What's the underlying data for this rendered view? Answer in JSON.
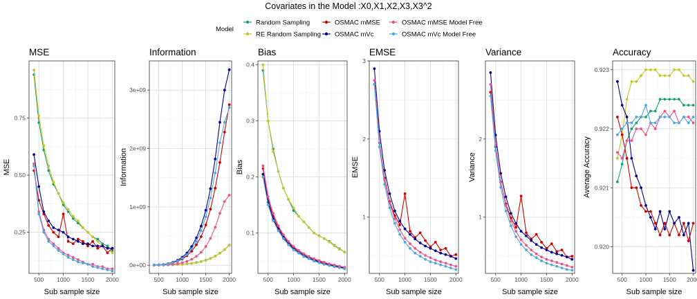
{
  "title": "Covariates in the Model :X0,X1,X2,X3,X3^2",
  "legend": {
    "title": "Model",
    "entries": [
      {
        "name": "Random Sampling",
        "color": "#1b9e77"
      },
      {
        "name": "RE Random Sampling",
        "color": "#c6c62a"
      },
      {
        "name": "OSMAC mMSE",
        "color": "#cc0000"
      },
      {
        "name": "OSMAC mVc",
        "color": "#00008b"
      },
      {
        "name": "OSMAC mMSE Model Free",
        "color": "#e7548a"
      },
      {
        "name": "OSMAC mVc Model Free",
        "color": "#4fa6dc"
      }
    ]
  },
  "chart_data": [
    {
      "type": "line",
      "title": "MSE",
      "xlabel": "Sub sample size",
      "ylabel": "MSE",
      "x": [
        400,
        500,
        600,
        700,
        800,
        900,
        1000,
        1100,
        1200,
        1300,
        1400,
        1500,
        1600,
        1700,
        1800,
        1900,
        2000
      ],
      "xlim": [
        300,
        2050
      ],
      "ylim": [
        0.07,
        1.0
      ],
      "xticks": [
        500,
        1000,
        1500,
        2000
      ],
      "yticks": [
        0.25,
        0.5,
        0.75
      ],
      "ytick_labels": [
        "0.25",
        "0.50",
        "0.75"
      ],
      "series": [
        {
          "name": "Random Sampling",
          "values": [
            0.94,
            0.73,
            0.61,
            0.52,
            0.46,
            0.42,
            0.37,
            0.34,
            0.31,
            0.29,
            0.27,
            0.25,
            0.23,
            0.22,
            0.2,
            0.19,
            0.17
          ]
        },
        {
          "name": "RE Random Sampling",
          "values": [
            0.96,
            0.76,
            0.63,
            0.54,
            0.47,
            0.42,
            0.38,
            0.35,
            0.32,
            0.3,
            0.27,
            0.25,
            0.23,
            0.21,
            0.19,
            0.18,
            0.16
          ]
        },
        {
          "name": "OSMAC mMSE",
          "values": [
            0.52,
            0.39,
            0.33,
            0.28,
            0.25,
            0.23,
            0.33,
            0.21,
            0.2,
            0.22,
            0.21,
            0.19,
            0.21,
            0.18,
            0.19,
            0.16,
            0.18
          ]
        },
        {
          "name": "OSMAC mVc",
          "values": [
            0.59,
            0.45,
            0.34,
            0.3,
            0.27,
            0.26,
            0.25,
            0.23,
            0.22,
            0.21,
            0.2,
            0.2,
            0.19,
            0.19,
            0.19,
            0.18,
            0.18
          ]
        },
        {
          "name": "OSMAC mMSE Model Free",
          "values": [
            0.55,
            0.34,
            0.26,
            0.22,
            0.2,
            0.18,
            0.16,
            0.15,
            0.14,
            0.13,
            0.12,
            0.11,
            0.11,
            0.1,
            0.1,
            0.09,
            0.09
          ]
        },
        {
          "name": "OSMAC mVc Model Free",
          "values": [
            0.54,
            0.33,
            0.25,
            0.21,
            0.19,
            0.17,
            0.155,
            0.14,
            0.13,
            0.12,
            0.115,
            0.11,
            0.1,
            0.095,
            0.09,
            0.085,
            0.08
          ]
        }
      ]
    },
    {
      "type": "line",
      "title": "Information",
      "xlabel": "Sub sample size",
      "ylabel": "Information",
      "x": [
        400,
        500,
        600,
        700,
        800,
        900,
        1000,
        1100,
        1200,
        1300,
        1400,
        1500,
        1600,
        1700,
        1800,
        1900,
        2000
      ],
      "xlim": [
        300,
        2050
      ],
      "ylim": [
        -140000000.0,
        3500000000.0
      ],
      "xticks": [
        500,
        1000,
        1500,
        2000
      ],
      "yticks": [
        0,
        1000000000,
        2000000000,
        3000000000
      ],
      "ytick_labels": [
        "0e+00",
        "1e+09",
        "2e+09",
        "3e+09"
      ],
      "series": [
        {
          "name": "Random Sampling",
          "values": [
            1500000.0,
            2200000.0,
            3500000.0,
            5500000.0,
            8000000.0,
            12000000.0,
            17000000.0,
            24000000.0,
            33000000.0,
            46000000.0,
            63000000.0,
            86000000.0,
            116000000.0,
            156000000.0,
            206000000.0,
            268000000.0,
            345000000.0
          ]
        },
        {
          "name": "RE Random Sampling",
          "values": [
            1100000.0,
            1600000.0,
            2600000.0,
            4200000.0,
            6500000.0,
            10000000.0,
            15000000.0,
            22000000.0,
            31000000.0,
            44000000.0,
            61000000.0,
            84000000.0,
            114000000.0,
            154000000.0,
            204000000.0,
            266000000.0,
            340000000.0
          ]
        },
        {
          "name": "OSMAC mMSE",
          "values": [
            2000000.0,
            5000000.0,
            11000000.0,
            22000000.0,
            40000000.0,
            67000000.0,
            106000000.0,
            162000000.0,
            240000000.0,
            350000000.0,
            490000000.0,
            690000000.0,
            960000000.0,
            1320000000.0,
            1760000000.0,
            2280000000.0,
            2750000000.0
          ]
        },
        {
          "name": "OSMAC mVc",
          "values": [
            2000000.0,
            6000000.0,
            13000000.0,
            27000000.0,
            50000000.0,
            85000000.0,
            138000000.0,
            210000000.0,
            320000000.0,
            470000000.0,
            670000000.0,
            940000000.0,
            1310000000.0,
            1820000000.0,
            2450000000.0,
            3000000000.0,
            3350000000.0
          ]
        },
        {
          "name": "OSMAC mMSE Model Free",
          "values": [
            1000000.0,
            2500000.0,
            5000000.0,
            9000000.0,
            16000000.0,
            27000000.0,
            44000000.0,
            68000000.0,
            102000000.0,
            152000000.0,
            222000000.0,
            320000000.0,
            460000000.0,
            650000000.0,
            890000000.0,
            1090000000.0,
            1200000000.0
          ]
        },
        {
          "name": "OSMAC mVc Model Free",
          "values": [
            2000000.0,
            5000000.0,
            11000000.0,
            23000000.0,
            43000000.0,
            73000000.0,
            118000000.0,
            183000000.0,
            280000000.0,
            410000000.0,
            590000000.0,
            830000000.0,
            1150000000.0,
            1580000000.0,
            2100000000.0,
            2450000000.0,
            2700000000.0
          ]
        }
      ]
    },
    {
      "type": "line",
      "title": "Bias",
      "xlabel": "Sub sample size",
      "ylabel": "Bias",
      "x": [
        400,
        500,
        600,
        700,
        800,
        900,
        1000,
        1100,
        1200,
        1300,
        1400,
        1500,
        1600,
        1700,
        1800,
        1900,
        2000
      ],
      "xlim": [
        300,
        2050
      ],
      "ylim": [
        0.028,
        0.407
      ],
      "xticks": [
        500,
        1000,
        1500,
        2000
      ],
      "yticks": [
        0.1,
        0.2,
        0.3,
        0.4
      ],
      "ytick_labels": [
        "0.1",
        "0.2",
        "0.3",
        "0.4"
      ],
      "series": [
        {
          "name": "Random Sampling",
          "values": [
            0.39,
            0.3,
            0.25,
            0.21,
            0.18,
            0.16,
            0.14,
            0.13,
            0.12,
            0.11,
            0.1,
            0.095,
            0.09,
            0.085,
            0.078,
            0.072,
            0.066
          ]
        },
        {
          "name": "RE Random Sampling",
          "values": [
            0.4,
            0.3,
            0.245,
            0.21,
            0.18,
            0.16,
            0.145,
            0.13,
            0.12,
            0.11,
            0.1,
            0.095,
            0.09,
            0.084,
            0.077,
            0.071,
            0.066
          ]
        },
        {
          "name": "OSMAC mMSE",
          "values": [
            0.215,
            0.16,
            0.13,
            0.11,
            0.095,
            0.083,
            0.074,
            0.068,
            0.062,
            0.057,
            0.053,
            0.05,
            0.047,
            0.044,
            0.042,
            0.04,
            0.038
          ]
        },
        {
          "name": "OSMAC mVc",
          "values": [
            0.205,
            0.155,
            0.125,
            0.107,
            0.092,
            0.081,
            0.072,
            0.066,
            0.06,
            0.055,
            0.052,
            0.048,
            0.045,
            0.043,
            0.041,
            0.039,
            0.037
          ]
        },
        {
          "name": "OSMAC mMSE Model Free",
          "values": [
            0.22,
            0.165,
            0.135,
            0.113,
            0.097,
            0.085,
            0.076,
            0.069,
            0.063,
            0.058,
            0.054,
            0.051,
            0.048,
            0.045,
            0.043,
            0.041,
            0.039
          ]
        },
        {
          "name": "OSMAC mVc Model Free",
          "values": [
            0.2,
            0.15,
            0.122,
            0.104,
            0.09,
            0.079,
            0.07,
            0.064,
            0.058,
            0.054,
            0.05,
            0.047,
            0.044,
            0.042,
            0.04,
            0.038,
            0.036
          ]
        }
      ]
    },
    {
      "type": "line",
      "title": "EMSE",
      "xlabel": "Sub sample size",
      "ylabel": "EMSE",
      "x": [
        400,
        500,
        600,
        700,
        800,
        900,
        1000,
        1100,
        1200,
        1300,
        1400,
        1500,
        1600,
        1700,
        1800,
        1900,
        2000
      ],
      "xlim": [
        300,
        2050
      ],
      "ylim": [
        0.28,
        3.0
      ],
      "xticks": [
        500,
        1000,
        1500,
        2000
      ],
      "yticks": [
        1,
        2,
        3
      ],
      "ytick_labels": [
        "1",
        "2",
        "3"
      ],
      "series": [
        {
          "name": "OSMAC mMSE",
          "values": [
            2.7,
            1.95,
            1.5,
            1.2,
            1.02,
            0.9,
            1.3,
            0.82,
            0.74,
            0.8,
            0.7,
            0.62,
            0.68,
            0.58,
            0.6,
            0.5,
            0.52
          ]
        },
        {
          "name": "OSMAC mVc",
          "values": [
            2.9,
            2.1,
            1.6,
            1.3,
            1.08,
            0.95,
            0.85,
            0.78,
            0.72,
            0.67,
            0.63,
            0.6,
            0.57,
            0.54,
            0.52,
            0.5,
            0.47
          ]
        },
        {
          "name": "OSMAC mMSE Model Free",
          "values": [
            2.75,
            1.95,
            1.48,
            1.18,
            0.98,
            0.84,
            0.73,
            0.66,
            0.6,
            0.55,
            0.51,
            0.48,
            0.45,
            0.43,
            0.41,
            0.39,
            0.37
          ]
        },
        {
          "name": "OSMAC mVc Model Free",
          "values": [
            2.7,
            1.9,
            1.42,
            1.12,
            0.92,
            0.78,
            0.68,
            0.6,
            0.54,
            0.5,
            0.46,
            0.43,
            0.41,
            0.39,
            0.37,
            0.35,
            0.33
          ]
        }
      ]
    },
    {
      "type": "line",
      "title": "Variance",
      "xlabel": "Sub sample size",
      "ylabel": "Variance",
      "x": [
        400,
        500,
        600,
        700,
        800,
        900,
        1000,
        1100,
        1200,
        1300,
        1400,
        1500,
        1600,
        1700,
        1800,
        1900,
        2000
      ],
      "xlim": [
        300,
        2050
      ],
      "ylim": [
        0.28,
        3.0
      ],
      "xticks": [
        500,
        1000,
        1500,
        2000
      ],
      "yticks": [
        1,
        2
      ],
      "ytick_labels": [
        "1",
        "2"
      ],
      "series": [
        {
          "name": "OSMAC mMSE",
          "values": [
            2.6,
            1.9,
            1.45,
            1.17,
            0.99,
            0.87,
            1.27,
            0.8,
            0.72,
            0.78,
            0.68,
            0.6,
            0.66,
            0.56,
            0.58,
            0.49,
            0.5
          ]
        },
        {
          "name": "OSMAC mVc",
          "values": [
            2.85,
            2.05,
            1.56,
            1.26,
            1.05,
            0.92,
            0.82,
            0.76,
            0.7,
            0.65,
            0.61,
            0.58,
            0.55,
            0.53,
            0.51,
            0.49,
            0.46
          ]
        },
        {
          "name": "OSMAC mMSE Model Free",
          "values": [
            2.7,
            1.92,
            1.45,
            1.15,
            0.95,
            0.82,
            0.71,
            0.64,
            0.58,
            0.53,
            0.49,
            0.46,
            0.44,
            0.42,
            0.4,
            0.38,
            0.36
          ]
        },
        {
          "name": "OSMAC mVc Model Free",
          "values": [
            2.55,
            1.85,
            1.38,
            1.08,
            0.89,
            0.75,
            0.65,
            0.58,
            0.52,
            0.48,
            0.44,
            0.41,
            0.39,
            0.37,
            0.35,
            0.33,
            0.32
          ]
        }
      ]
    },
    {
      "type": "line",
      "title": "Accuracy",
      "xlabel": "Sub sample size",
      "ylabel": "Average Accuracy",
      "x": [
        400,
        500,
        600,
        700,
        800,
        900,
        1000,
        1100,
        1200,
        1300,
        1400,
        1500,
        1600,
        1700,
        1800,
        1900,
        2000
      ],
      "xlim": [
        300,
        2050
      ],
      "ylim": [
        0.91955,
        0.92315
      ],
      "xticks": [
        500,
        1000,
        1500,
        2000
      ],
      "yticks": [
        0.92,
        0.921,
        0.922,
        0.923
      ],
      "ytick_labels": [
        "0.920",
        "0.921",
        "0.922",
        "0.923"
      ],
      "series": [
        {
          "name": "Random Sampling",
          "values": [
            0.9211,
            0.9214,
            0.9218,
            0.922,
            0.9221,
            0.9222,
            0.9222,
            0.9223,
            0.9223,
            0.9225,
            0.9225,
            0.9225,
            0.9225,
            0.9225,
            0.9224,
            0.9224,
            0.9224
          ]
        },
        {
          "name": "RE Random Sampling",
          "values": [
            0.9215,
            0.9219,
            0.9225,
            0.9228,
            0.9228,
            0.9229,
            0.923,
            0.923,
            0.923,
            0.9229,
            0.9229,
            0.9229,
            0.923,
            0.923,
            0.9229,
            0.9229,
            0.9228
          ]
        },
        {
          "name": "OSMAC mMSE",
          "values": [
            0.9222,
            0.9219,
            0.9215,
            0.921,
            0.921,
            0.9207,
            0.9206,
            0.9206,
            0.9204,
            0.9202,
            0.9204,
            0.9202,
            0.9204,
            0.9202,
            0.9204,
            0.9201,
            0.9204
          ]
        },
        {
          "name": "OSMAC mVc",
          "values": [
            0.9228,
            0.9224,
            0.9222,
            0.9215,
            0.9212,
            0.921,
            0.9207,
            0.9205,
            0.9203,
            0.9206,
            0.9203,
            0.9206,
            0.9204,
            0.9205,
            0.9202,
            0.9204,
            0.9196
          ]
        },
        {
          "name": "OSMAC mMSE Model Free",
          "values": [
            0.9216,
            0.9215,
            0.9218,
            0.9218,
            0.922,
            0.922,
            0.9219,
            0.9221,
            0.922,
            0.9222,
            0.9223,
            0.9222,
            0.9223,
            0.9221,
            0.9222,
            0.9222,
            0.9221
          ]
        },
        {
          "name": "OSMAC mVc Model Free",
          "values": [
            0.9219,
            0.922,
            0.9221,
            0.9221,
            0.9222,
            0.9222,
            0.9224,
            0.9221,
            0.9221,
            0.9222,
            0.9222,
            0.9222,
            0.9221,
            0.9221,
            0.9222,
            0.9221,
            0.9222
          ]
        }
      ]
    }
  ]
}
